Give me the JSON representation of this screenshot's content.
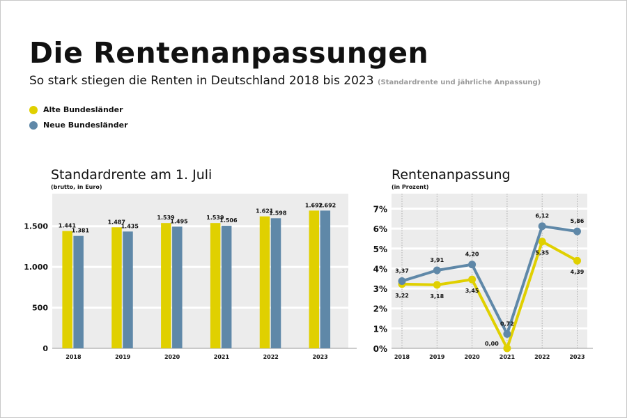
{
  "header": {
    "title": "Die Rentenanpassungen",
    "subtitle": "So stark stiegen die Renten in Deutschland 2018 bis 2023",
    "subnote": "(Standardrente und jährliche Anpassung)"
  },
  "legend": [
    {
      "label": "Alte Bundesländer",
      "color": "#e0d000"
    },
    {
      "label": "Neue Bundesländer",
      "color": "#5f88a8"
    }
  ],
  "chart_data": [
    {
      "type": "bar",
      "title": "Standardrente am 1. Juli",
      "subtitle": "(brutto, in Euro)",
      "categories": [
        "2018",
        "2019",
        "2020",
        "2021",
        "2022",
        "2023"
      ],
      "series": [
        {
          "name": "Alte Bundesländer",
          "values": [
            1441,
            1487,
            1539,
            1539,
            1621,
            1692
          ],
          "labels": [
            "1.441",
            "1.487",
            "1.539",
            "1.539",
            "1.621",
            "1.692"
          ],
          "color": "#e0d000"
        },
        {
          "name": "Neue Bundesländer",
          "values": [
            1381,
            1435,
            1495,
            1506,
            1598,
            1692
          ],
          "labels": [
            "1.381",
            "1.435",
            "1.495",
            "1.506",
            "1.598",
            "1.692"
          ],
          "color": "#5f88a8"
        }
      ],
      "yticks": [
        0,
        500,
        1000,
        1500
      ],
      "ytick_labels": [
        "0",
        "500",
        "1.000",
        "1.500"
      ],
      "ylim": [
        0,
        1900
      ],
      "grid": true
    },
    {
      "type": "line",
      "title": "Rentenanpassung",
      "subtitle": "(in Prozent)",
      "categories": [
        "2018",
        "2019",
        "2020",
        "2021",
        "2022",
        "2023"
      ],
      "series": [
        {
          "name": "Alte Bundesländer",
          "values": [
            3.22,
            3.18,
            3.45,
            0.0,
            5.35,
            4.39
          ],
          "labels": [
            "3,22",
            "3,18",
            "3,45",
            "0,00",
            "5,35",
            "4,39"
          ],
          "color": "#e0d000"
        },
        {
          "name": "Neue Bundesländer",
          "values": [
            3.37,
            3.91,
            4.2,
            0.72,
            6.12,
            5.86
          ],
          "labels": [
            "3,37",
            "3,91",
            "4,20",
            "0,72",
            "6,12",
            "5,86"
          ],
          "color": "#5f88a8"
        }
      ],
      "yticks": [
        0,
        1,
        2,
        3,
        4,
        5,
        6,
        7
      ],
      "ytick_labels": [
        "0%",
        "1%",
        "2%",
        "3%",
        "4%",
        "5%",
        "6%",
        "7%"
      ],
      "ylim": [
        0,
        7.75
      ],
      "grid": true
    }
  ]
}
